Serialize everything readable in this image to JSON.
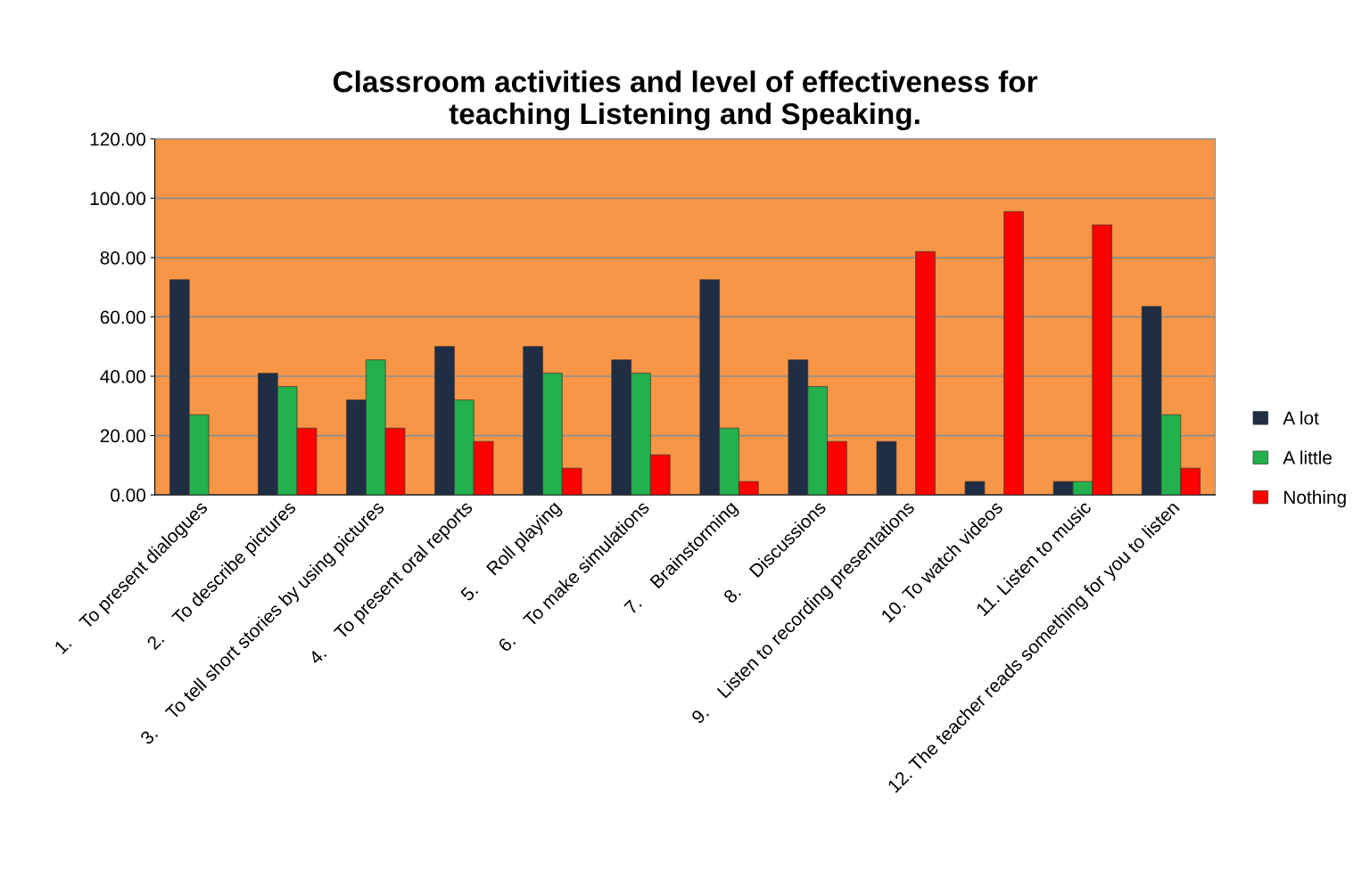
{
  "chart_data": {
    "type": "bar",
    "title": "Classroom activities and level of effectiveness for\nteaching Listening and Speaking.",
    "categories": [
      "1.    To present dialogues",
      "2.    To describe pictures",
      "3.    To tell short stories by using pictures",
      "4.    To present oral reports",
      "5.    Roll playing",
      "6.    To make simulations",
      "7.    Brainstorming",
      "8.    Discussions",
      "9.    Listen to recording presentations",
      "10. To watch videos",
      "11. Listen to music",
      "12. The teacher reads something for you to listen"
    ],
    "series": [
      {
        "name": "A lot",
        "color": "#1f2d45",
        "values": [
          72.5,
          41,
          32,
          50,
          50,
          45.5,
          72.5,
          45.5,
          18,
          4.5,
          4.5,
          63.5
        ]
      },
      {
        "name": "A little",
        "color": "#22b14c",
        "values": [
          27,
          36.5,
          45.5,
          32,
          41,
          41,
          22.5,
          36.5,
          null,
          null,
          4.5,
          27
        ]
      },
      {
        "name": "Nothing",
        "color": "#ff0000",
        "values": [
          null,
          22.5,
          22.5,
          18,
          9,
          13.5,
          4.5,
          18,
          82,
          95.5,
          91,
          9
        ]
      }
    ],
    "ylim": [
      0,
      120
    ],
    "yticks": [
      {
        "value": 0,
        "label": "0.00"
      },
      {
        "value": 20,
        "label": "20.00"
      },
      {
        "value": 40,
        "label": "40.00"
      },
      {
        "value": 60,
        "label": "60.00"
      },
      {
        "value": 80,
        "label": "80.00"
      },
      {
        "value": 100,
        "label": "100.00"
      },
      {
        "value": 120,
        "label": "120.00"
      }
    ],
    "grid": "y",
    "legend": "right"
  }
}
